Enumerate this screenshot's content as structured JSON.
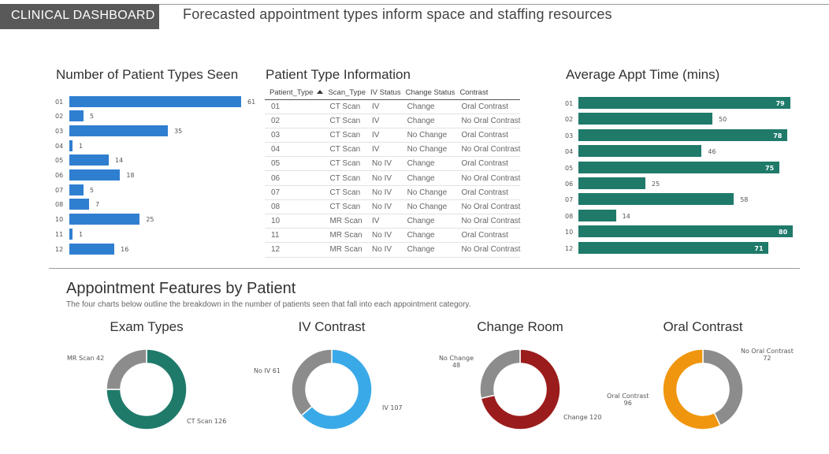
{
  "header": {
    "tab_label": "CLINICAL DASHBOARD",
    "subtitle": "Forecasted appointment types inform space and staffing resources"
  },
  "patient_types_chart": {
    "title": "Number of Patient Types Seen",
    "color": "#2f7fd0",
    "chart_data": {
      "type": "bar",
      "orientation": "horizontal",
      "categories": [
        "01",
        "02",
        "03",
        "04",
        "05",
        "06",
        "07",
        "08",
        "10",
        "11",
        "12"
      ],
      "values": [
        61,
        5,
        35,
        1,
        14,
        18,
        5,
        7,
        25,
        1,
        16
      ]
    }
  },
  "info_table": {
    "title": "Patient Type Information",
    "columns": [
      "Patient_Type",
      "Scan_Type",
      "IV Status",
      "Change Status",
      "Contrast"
    ],
    "rows": [
      [
        "01",
        "CT Scan",
        "IV",
        "Change",
        "Oral Contrast"
      ],
      [
        "02",
        "CT Scan",
        "IV",
        "Change",
        "No Oral Contrast"
      ],
      [
        "03",
        "CT Scan",
        "IV",
        "No Change",
        "Oral Contrast"
      ],
      [
        "04",
        "CT Scan",
        "IV",
        "No Change",
        "No Oral Contrast"
      ],
      [
        "05",
        "CT Scan",
        "No IV",
        "Change",
        "Oral Contrast"
      ],
      [
        "06",
        "CT Scan",
        "No IV",
        "Change",
        "No Oral Contrast"
      ],
      [
        "07",
        "CT Scan",
        "No IV",
        "No Change",
        "Oral Contrast"
      ],
      [
        "08",
        "CT Scan",
        "No IV",
        "No Change",
        "No Oral Contrast"
      ],
      [
        "10",
        "MR Scan",
        "IV",
        "Change",
        "No Oral Contrast"
      ],
      [
        "11",
        "MR Scan",
        "No IV",
        "Change",
        "Oral Contrast"
      ],
      [
        "12",
        "MR Scan",
        "No IV",
        "Change",
        "No Oral Contrast"
      ]
    ]
  },
  "appt_time_chart": {
    "title": "Average Appt Time (mins)",
    "color": "#1f7a6a",
    "chart_data": {
      "type": "bar",
      "orientation": "horizontal",
      "categories": [
        "01",
        "02",
        "03",
        "04",
        "05",
        "06",
        "07",
        "08",
        "10",
        "12"
      ],
      "values": [
        79,
        50,
        78,
        46,
        75,
        25,
        58,
        14,
        80,
        71
      ]
    }
  },
  "features": {
    "title": "Appointment Features by Patient",
    "description": "The four charts below outline the breakdown in the number of patients seen that fall into each appointment category."
  },
  "chart_data": [
    {
      "type": "pie",
      "donut": true,
      "title": "Exam Types",
      "slices": [
        {
          "label": "CT Scan",
          "value": 126,
          "color": "#1f7a6a"
        },
        {
          "label": "MR Scan",
          "value": 42,
          "color": "#8c8c8c"
        }
      ]
    },
    {
      "type": "pie",
      "donut": true,
      "title": "IV Contrast",
      "slices": [
        {
          "label": "IV",
          "value": 107,
          "color": "#3aa9e8"
        },
        {
          "label": "No IV",
          "value": 61,
          "color": "#8c8c8c"
        }
      ]
    },
    {
      "type": "pie",
      "donut": true,
      "title": "Change Room",
      "slices": [
        {
          "label": "Change",
          "value": 120,
          "color": "#9b1c1c"
        },
        {
          "label": "No Change",
          "value": 48,
          "color": "#8c8c8c"
        }
      ]
    },
    {
      "type": "pie",
      "donut": true,
      "title": "Oral Contrast",
      "slices": [
        {
          "label": "No Oral Contrast",
          "value": 72,
          "color": "#8c8c8c"
        },
        {
          "label": "Oral Contrast",
          "value": 96,
          "color": "#f0960e"
        }
      ]
    }
  ]
}
